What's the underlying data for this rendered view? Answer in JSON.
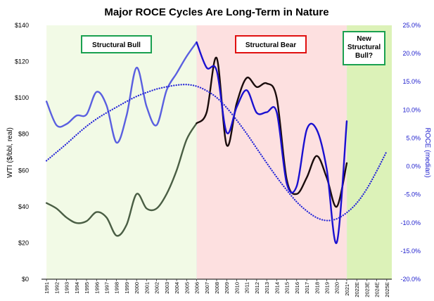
{
  "chart_data": {
    "type": "line",
    "title": "Major ROCE Cycles Are Long-Term in Nature",
    "ylabel": "WTI ($/bbl, real)",
    "y2label": "ROCE (median)",
    "ylim": [
      0,
      140
    ],
    "y2lim": [
      -20,
      25
    ],
    "y_ticks": [
      "$0",
      "$20",
      "$40",
      "$60",
      "$80",
      "$100",
      "$120",
      "$140"
    ],
    "y_tick_values": [
      0,
      20,
      40,
      60,
      80,
      100,
      120,
      140
    ],
    "y2_ticks": [
      "-20.0%",
      "-15.0%",
      "-10.0%",
      "-5.0%",
      "0.0%",
      "5.0%",
      "10.0%",
      "15.0%",
      "20.0%",
      "25.0%"
    ],
    "y2_tick_values": [
      -20,
      -15,
      -10,
      -5,
      0,
      5,
      10,
      15,
      20,
      25
    ],
    "categories": [
      "1991",
      "1992",
      "1993",
      "1994",
      "1995",
      "1996",
      "1997",
      "1998",
      "1999",
      "2000",
      "2001",
      "2002",
      "2003",
      "2004",
      "2005",
      "2006",
      "2007",
      "2008",
      "2009",
      "2010",
      "2011",
      "2012",
      "2013",
      "2014",
      "2015",
      "2016",
      "2017",
      "2018",
      "2019",
      "2020",
      "2021*",
      "2022E",
      "2023E",
      "2024E",
      "2025E"
    ],
    "regions": [
      {
        "label": "Structural Bull",
        "from": "1991",
        "to": "2006",
        "color": "#f2fae6",
        "border": "#1aa050"
      },
      {
        "label": "Structural Bear",
        "from": "2006",
        "to": "2021*",
        "color": "#fde0e0",
        "border": "#e01010"
      },
      {
        "label": "New Structural Bull?",
        "label_lines": [
          "New",
          "Structural",
          "Bull?"
        ],
        "from": "2021*",
        "to": "2025E",
        "color": "#dcf2b8",
        "border": "#1aa050"
      }
    ],
    "series": [
      {
        "axis": "left",
        "color": "#4a5e44",
        "values": [
          42,
          39,
          34,
          31,
          32,
          37,
          34,
          24,
          30,
          47,
          39,
          39,
          47,
          60,
          77,
          86,
          null,
          null,
          null,
          null,
          null,
          null,
          null,
          null,
          null,
          null,
          null,
          null,
          null,
          null,
          64,
          null,
          null,
          null,
          null
        ]
      },
      {
        "axis": "left",
        "color": "#1a0c0c",
        "values": [
          null,
          null,
          null,
          null,
          null,
          null,
          null,
          null,
          null,
          null,
          null,
          null,
          null,
          null,
          null,
          86,
          92,
          122,
          74,
          97,
          111,
          106,
          108,
          100,
          55,
          47,
          56,
          68,
          56,
          40,
          64,
          null,
          null,
          null,
          null
        ]
      },
      {
        "axis": "right",
        "color": "#5a5fe0",
        "values": [
          11.5,
          7.3,
          7.5,
          9.0,
          9.2,
          13.2,
          10.8,
          4.2,
          9.0,
          17.5,
          10.6,
          7.3,
          13.5,
          16.5,
          19.5,
          22.0,
          null,
          null,
          null,
          null,
          null,
          null,
          null,
          null,
          null,
          null,
          null,
          null,
          null,
          null,
          null,
          null,
          null,
          null,
          null
        ]
      },
      {
        "axis": "right",
        "color": "#1a10d0",
        "values": [
          null,
          null,
          null,
          null,
          null,
          null,
          null,
          null,
          null,
          null,
          null,
          null,
          null,
          null,
          null,
          22.0,
          17.5,
          17.0,
          6.0,
          10.5,
          13.5,
          9.5,
          9.6,
          9.6,
          -3.0,
          -3.5,
          6.5,
          6.5,
          -0.5,
          -13.5,
          8.0,
          null,
          null,
          null,
          null
        ]
      },
      {
        "axis": "right",
        "color": "#2a2ad8",
        "style": "dotted",
        "values": [
          1.0,
          2.5,
          4.0,
          5.6,
          7.1,
          8.4,
          9.5,
          10.5,
          11.5,
          12.4,
          13.1,
          13.7,
          14.1,
          14.4,
          14.5,
          14.2,
          13.4,
          12.2,
          10.4,
          8.2,
          5.8,
          3.2,
          0.6,
          -1.9,
          -4.2,
          -6.3,
          -7.9,
          -9.1,
          -9.6,
          -9.3,
          -8.2,
          -6.5,
          -4.0,
          -0.8,
          2.7
        ]
      }
    ]
  }
}
